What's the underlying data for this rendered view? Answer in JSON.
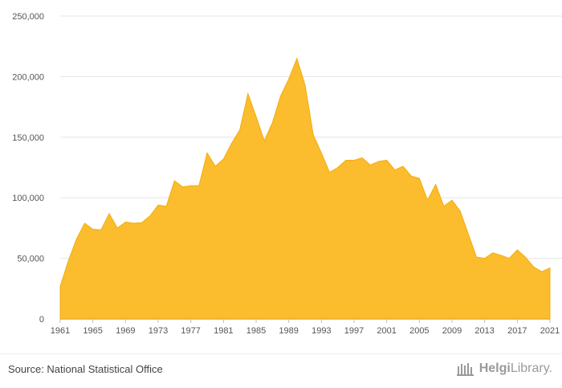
{
  "chart_data": {
    "type": "area",
    "x": [
      1961,
      1962,
      1963,
      1964,
      1965,
      1966,
      1967,
      1968,
      1969,
      1970,
      1971,
      1972,
      1973,
      1974,
      1975,
      1976,
      1977,
      1978,
      1979,
      1980,
      1981,
      1982,
      1983,
      1984,
      1985,
      1986,
      1987,
      1988,
      1989,
      1990,
      1991,
      1992,
      1993,
      1994,
      1995,
      1996,
      1997,
      1998,
      1999,
      2000,
      2001,
      2002,
      2003,
      2004,
      2005,
      2006,
      2007,
      2008,
      2009,
      2010,
      2011,
      2012,
      2013,
      2014,
      2015,
      2016,
      2017,
      2018,
      2019,
      2020,
      2021
    ],
    "series": [
      {
        "values": [
          27000,
          48000,
          66000,
          79000,
          74000,
          73500,
          87000,
          75000,
          80000,
          79000,
          79500,
          85000,
          94000,
          93000,
          114000,
          109000,
          110000,
          110000,
          137000,
          126000,
          132000,
          145000,
          156000,
          186000,
          167000,
          147000,
          162000,
          184000,
          198000,
          215000,
          193000,
          152000,
          137000,
          121000,
          125000,
          131000,
          131000,
          133000,
          127000,
          130000,
          131000,
          123000,
          126000,
          118000,
          116000,
          98000,
          111000,
          93000,
          98000,
          89000,
          70000,
          51000,
          50000,
          54500,
          52500,
          50000,
          57000,
          51000,
          43000,
          39000,
          42000
        ]
      }
    ],
    "x_ticks": [
      "1961",
      "1965",
      "1969",
      "1973",
      "1977",
      "1981",
      "1985",
      "1989",
      "1993",
      "1997",
      "2001",
      "2005",
      "2009",
      "2013",
      "2017",
      "2021"
    ],
    "y_ticks": [
      "0",
      "50,000",
      "100,000",
      "150,000",
      "200,000",
      "250,000"
    ],
    "ylim": [
      0,
      250000
    ],
    "xlim": [
      1961,
      2021
    ],
    "grid": true,
    "legend": "none",
    "colors": {
      "fill": "#fbbc2d",
      "stroke": "#f2ad0f"
    }
  },
  "footer": {
    "source": "Source: National Statistical Office",
    "brand_prefix": "Helgi",
    "brand_suffix": "Library."
  }
}
